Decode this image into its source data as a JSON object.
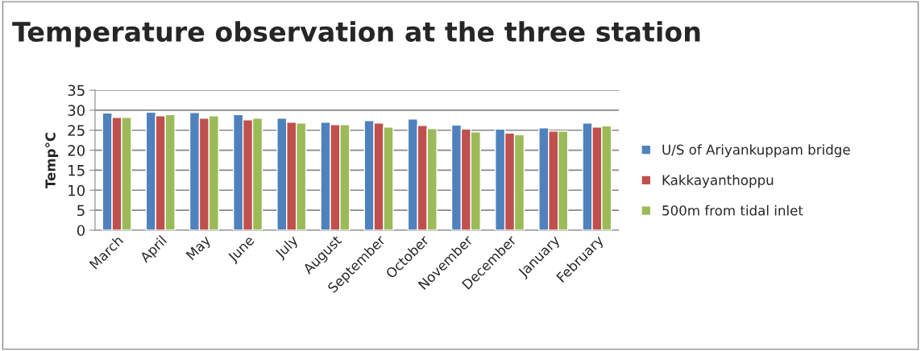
{
  "chart_data": {
    "type": "bar",
    "title": "Temperature observation at the three station",
    "ylabel": "Temp°C",
    "categories": [
      "March",
      "April",
      "May",
      "June",
      "July",
      "August",
      "September",
      "October",
      "November",
      "December",
      "January",
      "February"
    ],
    "series": [
      {
        "name": "U/S of Ariyankuppam bridge",
        "color": "#4f81bd",
        "values": [
          29.3,
          29.5,
          29.4,
          28.9,
          28.0,
          27.0,
          27.4,
          27.8,
          26.3,
          25.3,
          25.6,
          26.8
        ]
      },
      {
        "name": "Kakkayanthoppu",
        "color": "#c0504d",
        "values": [
          28.2,
          28.6,
          28.0,
          27.6,
          27.0,
          26.4,
          26.8,
          26.2,
          25.3,
          24.3,
          24.8,
          25.8
        ]
      },
      {
        "name": "500m from tidal inlet",
        "color": "#9bbb59",
        "values": [
          28.2,
          28.9,
          28.6,
          28.0,
          26.8,
          26.4,
          25.8,
          25.4,
          24.6,
          23.9,
          24.8,
          26.1
        ]
      }
    ],
    "ylim": [
      0,
      35
    ],
    "yticks": [
      0,
      5,
      10,
      15,
      20,
      25,
      30,
      35
    ],
    "grid": "y",
    "legend": "right"
  }
}
